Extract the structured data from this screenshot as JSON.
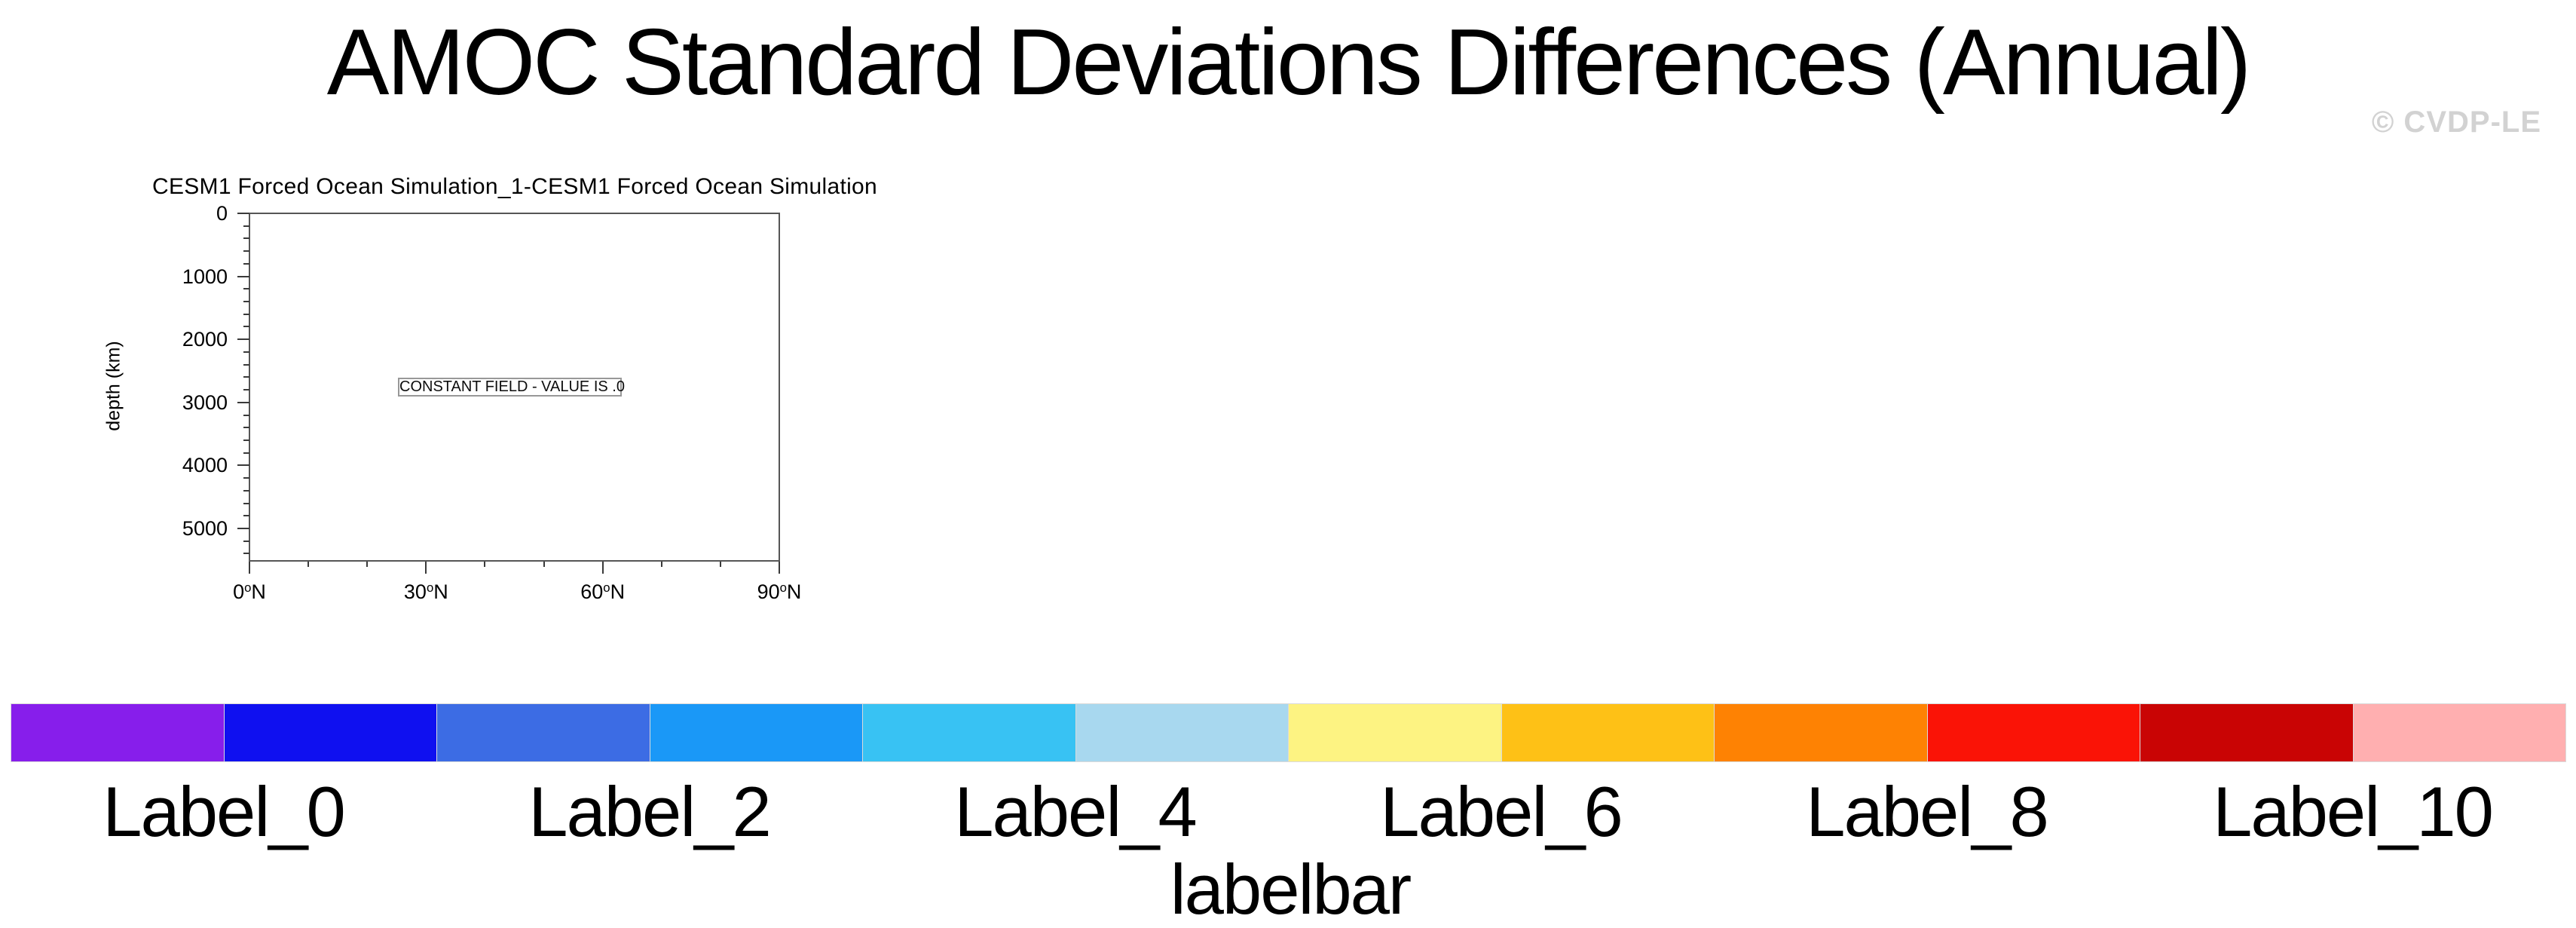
{
  "figure": {
    "title": "AMOC Standard Deviations Differences (Annual)",
    "watermark": "© CVDP-LE",
    "background": "#ffffff",
    "title_color": "#000000",
    "watermark_color": "#d2d2d2"
  },
  "chart_data": {
    "type": "heatmap",
    "title": "CESM1 Forced Ocean Simulation_1-CESM1 Forced Ocean Simulation",
    "annotation": "CONSTANT FIELD - VALUE IS .0",
    "field": "constant",
    "constant_value": 0.0,
    "xlabel": "",
    "ylabel": "depth (km)",
    "grid": false,
    "plot_background": "#ffffff",
    "frame_color": "#565656",
    "x_axis": {
      "tick_labels": [
        "0°N",
        "30°N",
        "60°N",
        "90°N"
      ],
      "tick_values_deg": [
        0,
        30,
        60,
        90
      ],
      "minor_step_deg": 10,
      "range_deg": [
        0,
        90
      ],
      "degree_superscript": true
    },
    "y_axis": {
      "tick_labels": [
        "0",
        "1000",
        "2000",
        "3000",
        "4000",
        "5000"
      ],
      "tick_values": [
        0,
        1000,
        2000,
        3000,
        4000,
        5000
      ],
      "minor_step": 200,
      "range": [
        0,
        5515
      ],
      "inverted": true
    }
  },
  "labelbar": {
    "title": "labelbar",
    "colors": [
      "#871EEB",
      "#0F10F0",
      "#3C6CE4",
      "#1A98F7",
      "#38C2F3",
      "#A8D8EF",
      "#FDF382",
      "#FEC116",
      "#FE8203",
      "#FA1306",
      "#C90404",
      "#FFAFB0"
    ],
    "labels": [
      "Label_0",
      "Label_2",
      "Label_4",
      "Label_6",
      "Label_8",
      "Label_10"
    ],
    "label_boundary_indices": [
      1,
      3,
      5,
      7,
      9,
      11
    ]
  }
}
